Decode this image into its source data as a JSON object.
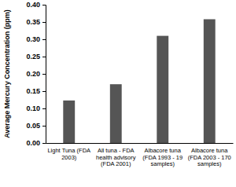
{
  "chart_data": {
    "type": "bar",
    "y_label": "Average Mercury Concentration (ppm)",
    "categories": [
      "Light Tuna (FDA 2003)",
      "All tuna - FDA health advisory (FDA 2001)",
      "Albacore tuna (FDA 1993 - 19 samples)",
      "Albacore tuna (FDA 2003 - 170 samples)"
    ],
    "values": [
      0.123,
      0.17,
      0.31,
      0.358
    ],
    "color": "#555555",
    "ylim": [
      0,
      0.4
    ],
    "yticks": [
      {
        "value": 0,
        "label": "0.00"
      },
      {
        "value": 0.05,
        "label": "0.05"
      },
      {
        "value": 0.1,
        "label": "0.10"
      },
      {
        "value": 0.15,
        "label": "0.15"
      },
      {
        "value": 0.2,
        "label": "0.20"
      },
      {
        "value": 0.25,
        "label": "0.25"
      },
      {
        "value": 0.3,
        "label": "0.30"
      },
      {
        "value": 0.35,
        "label": "0.35"
      },
      {
        "value": 0.4,
        "label": "0.40"
      }
    ],
    "grid": false
  }
}
